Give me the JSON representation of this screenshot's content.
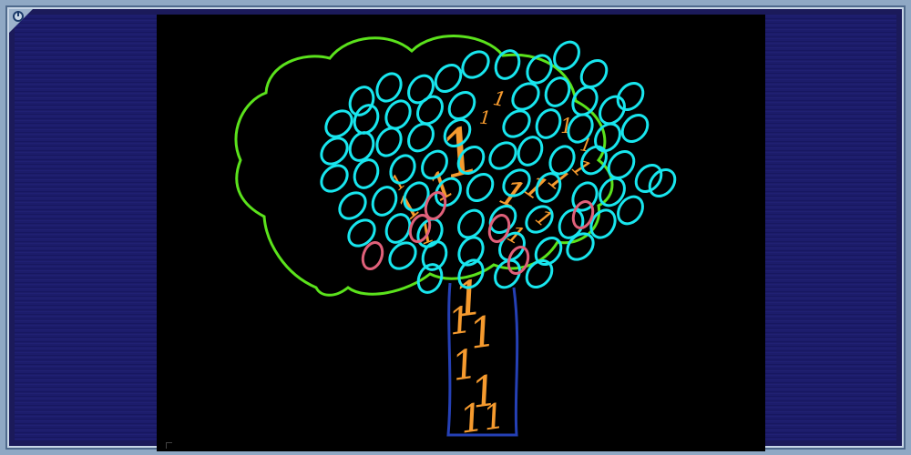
{
  "window": {
    "power_icon": "power-icon",
    "colors": {
      "frame": "#8fa8c4",
      "side_panels": "#1b1a5a",
      "stage": "#000000"
    }
  },
  "artwork": {
    "glyph_zero": "0",
    "glyph_one": "1",
    "colors": {
      "leaves": "#18e6ee",
      "crown_outline": "#5be21c",
      "branches": "#f59a2e",
      "trunk_outline": "#2540b5",
      "fruit": "#e0607a"
    }
  }
}
